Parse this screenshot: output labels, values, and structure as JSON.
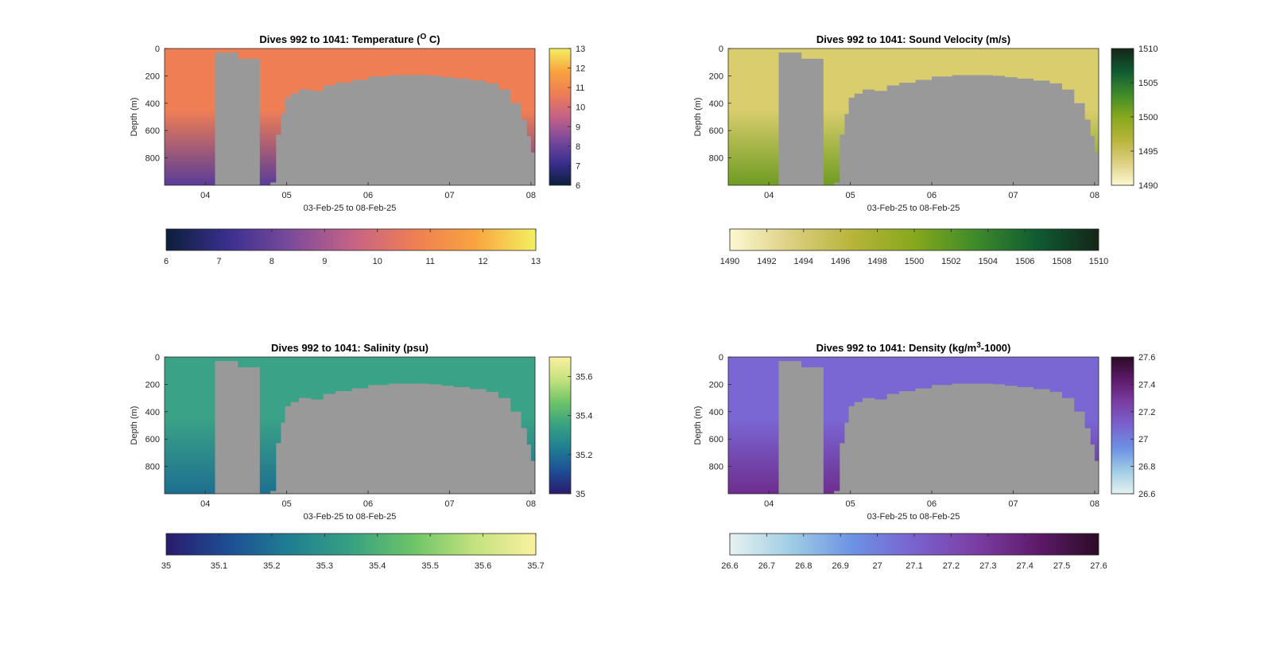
{
  "chart_data": [
    {
      "type": "heatmap",
      "title_main": "Dives 992 to 1041: Temperature (",
      "title_sup": "O",
      "title_tail": " C)",
      "ylabel": "Depth (m)",
      "xlabel": "03-Feb-25 to 08-Feb-25",
      "x_ticks": [
        "04",
        "05",
        "06",
        "07",
        "08"
      ],
      "y_ticks": [
        "0",
        "200",
        "400",
        "600",
        "800"
      ],
      "ylim": [
        0,
        1000
      ],
      "xlim_days": [
        3.5,
        8.05
      ],
      "variable_range": [
        6,
        13
      ],
      "colormap": [
        "#0b1f3a",
        "#3a2f8f",
        "#7a4a9a",
        "#c46287",
        "#ee7d55",
        "#f8a33f",
        "#f4f061"
      ],
      "surface_color": "#f07e55",
      "deep_color": "#5a3c98",
      "colorbar_ticks": [
        "13",
        "12",
        "11",
        "10",
        "9",
        "8",
        "7",
        "6"
      ],
      "colorbar_h_ticks": [
        "6",
        "7",
        "8",
        "9",
        "10",
        "11",
        "12",
        "13"
      ]
    },
    {
      "type": "heatmap",
      "title_main": "Dives 992 to 1041: Sound Velocity (m/s)",
      "title_sup": "",
      "title_tail": "",
      "ylabel": "Depth (m)",
      "xlabel": "03-Feb-25 to 08-Feb-25",
      "x_ticks": [
        "04",
        "05",
        "06",
        "07",
        "08"
      ],
      "y_ticks": [
        "0",
        "200",
        "400",
        "600",
        "800"
      ],
      "ylim": [
        0,
        1000
      ],
      "xlim_days": [
        3.5,
        8.05
      ],
      "variable_range": [
        1490,
        1510
      ],
      "colormap": [
        "#fdf8d2",
        "#dccf80",
        "#b7b43a",
        "#86a81c",
        "#3e8a2a",
        "#0f5b32",
        "#142518"
      ],
      "surface_color": "#d9cd6e",
      "deep_color": "#6f9c22",
      "colorbar_ticks": [
        "1510",
        "1505",
        "1500",
        "1495",
        "1490"
      ],
      "colorbar_h_ticks": [
        "1490",
        "1492",
        "1494",
        "1496",
        "1498",
        "1500",
        "1502",
        "1504",
        "1506",
        "1508",
        "1510"
      ]
    },
    {
      "type": "heatmap",
      "title_main": "Dives 992 to 1041: Salinity (psu)",
      "title_sup": "",
      "title_tail": "",
      "ylabel": "Depth (m)",
      "xlabel": "03-Feb-25 to 08-Feb-25",
      "x_ticks": [
        "04",
        "05",
        "06",
        "07",
        "08"
      ],
      "y_ticks": [
        "0",
        "200",
        "400",
        "600",
        "800"
      ],
      "ylim": [
        0,
        1000
      ],
      "xlim_days": [
        3.5,
        8.05
      ],
      "variable_range": [
        35,
        35.7
      ],
      "colormap": [
        "#2a1b6c",
        "#1d4e95",
        "#1f7e92",
        "#37a182",
        "#6cc468",
        "#c3e27e",
        "#fbf1a0"
      ],
      "surface_color": "#3aa286",
      "deep_color": "#1d6f90",
      "colorbar_ticks": [
        "35.6",
        "35.4",
        "35.2",
        "35"
      ],
      "colorbar_h_ticks": [
        "35",
        "35.1",
        "35.2",
        "35.3",
        "35.4",
        "35.5",
        "35.6",
        "35.7"
      ]
    },
    {
      "type": "heatmap",
      "title_main": "Dives 992 to 1041: Density (kg/m",
      "title_sup": "3",
      "title_tail": "-1000)",
      "ylabel": "Depth (m)",
      "xlabel": "03-Feb-25 to 08-Feb-25",
      "x_ticks": [
        "04",
        "05",
        "06",
        "07",
        "08"
      ],
      "y_ticks": [
        "0",
        "200",
        "400",
        "600",
        "800"
      ],
      "ylim": [
        0,
        1000
      ],
      "xlim_days": [
        3.5,
        8.05
      ],
      "variable_range": [
        26.6,
        27.6
      ],
      "colormap": [
        "#e6f2f1",
        "#9fcde4",
        "#6c92e4",
        "#7a62cf",
        "#7b3ea4",
        "#5e1a6b",
        "#2c0b26"
      ],
      "surface_color": "#7a67d4",
      "deep_color": "#6e2d8e",
      "colorbar_ticks": [
        "27.6",
        "27.4",
        "27.2",
        "27",
        "26.8",
        "26.6"
      ],
      "colorbar_h_ticks": [
        "26.6",
        "26.7",
        "26.8",
        "26.9",
        "27",
        "27.1",
        "27.2",
        "27.3",
        "27.4",
        "27.5",
        "27.6"
      ]
    }
  ],
  "no_data_color": "#999999"
}
